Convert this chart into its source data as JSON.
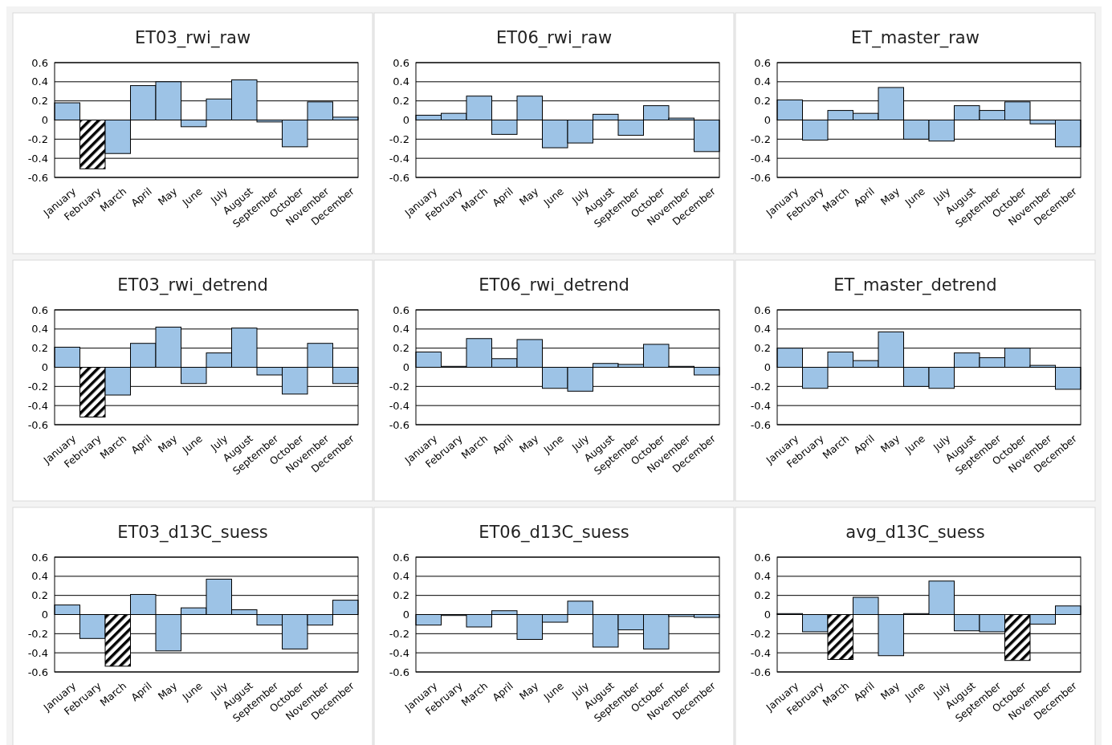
{
  "chart_data": [
    {
      "type": "bar",
      "title": "ET03_rwi_raw",
      "categories": [
        "January",
        "February",
        "March",
        "April",
        "May",
        "June",
        "July",
        "August",
        "September",
        "October",
        "November",
        "December"
      ],
      "values": [
        0.18,
        -0.51,
        -0.35,
        0.36,
        0.4,
        -0.07,
        0.22,
        0.42,
        -0.02,
        -0.28,
        0.19,
        0.03
      ],
      "colors": [
        "#9dc3e6",
        "#000000",
        "#9dc3e6",
        "#9dc3e6",
        "#9dc3e6",
        "#9dc3e6",
        "#9dc3e6",
        "#9dc3e6",
        "#9dc3e6",
        "#9dc3e6",
        "#9dc3e6",
        "#9dc3e6"
      ],
      "ylim": [
        -0.6,
        0.6
      ],
      "yticks": [
        -0.6,
        -0.4,
        -0.2,
        0,
        0.2,
        0.4,
        0.6
      ],
      "grid": "y"
    },
    {
      "type": "bar",
      "title": "ET06_rwi_raw",
      "categories": [
        "January",
        "February",
        "March",
        "April",
        "May",
        "June",
        "July",
        "August",
        "September",
        "October",
        "November",
        "December"
      ],
      "values": [
        0.05,
        0.07,
        0.25,
        -0.15,
        0.25,
        -0.29,
        -0.24,
        0.06,
        -0.16,
        0.15,
        0.02,
        -0.33
      ],
      "colors": [
        "#9dc3e6",
        "#9dc3e6",
        "#9dc3e6",
        "#9dc3e6",
        "#9dc3e6",
        "#9dc3e6",
        "#9dc3e6",
        "#9dc3e6",
        "#9dc3e6",
        "#9dc3e6",
        "#9dc3e6",
        "#9dc3e6"
      ],
      "ylim": [
        -0.6,
        0.6
      ],
      "yticks": [
        -0.6,
        -0.4,
        -0.2,
        0,
        0.2,
        0.4,
        0.6
      ],
      "grid": "y"
    },
    {
      "type": "bar",
      "title": "ET_master_raw",
      "categories": [
        "January",
        "February",
        "March",
        "April",
        "May",
        "June",
        "July",
        "August",
        "September",
        "October",
        "November",
        "December"
      ],
      "values": [
        0.21,
        -0.21,
        0.1,
        0.07,
        0.34,
        -0.2,
        -0.22,
        0.15,
        0.1,
        0.19,
        -0.04,
        -0.28
      ],
      "colors": [
        "#9dc3e6",
        "#9dc3e6",
        "#9dc3e6",
        "#9dc3e6",
        "#9dc3e6",
        "#9dc3e6",
        "#9dc3e6",
        "#9dc3e6",
        "#9dc3e6",
        "#9dc3e6",
        "#9dc3e6",
        "#9dc3e6"
      ],
      "ylim": [
        -0.6,
        0.6
      ],
      "yticks": [
        -0.6,
        -0.4,
        -0.2,
        0,
        0.2,
        0.4,
        0.6
      ],
      "grid": "y"
    },
    {
      "type": "bar",
      "title": "ET03_rwi_detrend",
      "categories": [
        "January",
        "February",
        "March",
        "April",
        "May",
        "June",
        "July",
        "August",
        "September",
        "October",
        "November",
        "December"
      ],
      "values": [
        0.21,
        -0.52,
        -0.29,
        0.25,
        0.42,
        -0.17,
        0.15,
        0.41,
        -0.08,
        -0.28,
        0.25,
        -0.17
      ],
      "colors": [
        "#9dc3e6",
        "#000000",
        "#9dc3e6",
        "#9dc3e6",
        "#9dc3e6",
        "#9dc3e6",
        "#9dc3e6",
        "#9dc3e6",
        "#9dc3e6",
        "#9dc3e6",
        "#9dc3e6",
        "#9dc3e6"
      ],
      "ylim": [
        -0.6,
        0.6
      ],
      "yticks": [
        -0.6,
        -0.4,
        -0.2,
        0,
        0.2,
        0.4,
        0.6
      ],
      "grid": "y"
    },
    {
      "type": "bar",
      "title": "ET06_rwi_detrend",
      "categories": [
        "January",
        "February",
        "March",
        "April",
        "May",
        "June",
        "July",
        "August",
        "September",
        "October",
        "November",
        "December"
      ],
      "values": [
        0.16,
        0.01,
        0.3,
        0.09,
        0.29,
        -0.22,
        -0.25,
        0.04,
        0.03,
        0.24,
        0.01,
        -0.08
      ],
      "colors": [
        "#9dc3e6",
        "#9dc3e6",
        "#9dc3e6",
        "#9dc3e6",
        "#9dc3e6",
        "#9dc3e6",
        "#9dc3e6",
        "#9dc3e6",
        "#9dc3e6",
        "#9dc3e6",
        "#9dc3e6",
        "#9dc3e6"
      ],
      "ylim": [
        -0.6,
        0.6
      ],
      "yticks": [
        -0.6,
        -0.4,
        -0.2,
        0,
        0.2,
        0.4,
        0.6
      ],
      "grid": "y"
    },
    {
      "type": "bar",
      "title": "ET_master_detrend",
      "categories": [
        "January",
        "February",
        "March",
        "April",
        "May",
        "June",
        "July",
        "August",
        "September",
        "October",
        "November",
        "December"
      ],
      "values": [
        0.2,
        -0.22,
        0.16,
        0.07,
        0.37,
        -0.2,
        -0.22,
        0.15,
        0.1,
        0.2,
        0.02,
        -0.23
      ],
      "colors": [
        "#9dc3e6",
        "#9dc3e6",
        "#9dc3e6",
        "#9dc3e6",
        "#9dc3e6",
        "#9dc3e6",
        "#9dc3e6",
        "#9dc3e6",
        "#9dc3e6",
        "#9dc3e6",
        "#9dc3e6",
        "#9dc3e6"
      ],
      "ylim": [
        -0.6,
        0.6
      ],
      "yticks": [
        -0.6,
        -0.4,
        -0.2,
        0,
        0.2,
        0.4,
        0.6
      ],
      "grid": "y"
    },
    {
      "type": "bar",
      "title": "ET03_d13C_suess",
      "categories": [
        "January",
        "February",
        "March",
        "April",
        "May",
        "June",
        "July",
        "August",
        "September",
        "October",
        "November",
        "December"
      ],
      "values": [
        0.1,
        -0.25,
        -0.54,
        0.21,
        -0.38,
        0.07,
        0.37,
        0.05,
        -0.11,
        -0.36,
        -0.11,
        0.15
      ],
      "colors": [
        "#9dc3e6",
        "#9dc3e6",
        "#000000",
        "#9dc3e6",
        "#9dc3e6",
        "#9dc3e6",
        "#9dc3e6",
        "#9dc3e6",
        "#9dc3e6",
        "#9dc3e6",
        "#9dc3e6",
        "#9dc3e6"
      ],
      "ylim": [
        -0.6,
        0.6
      ],
      "yticks": [
        -0.6,
        -0.4,
        -0.2,
        0,
        0.2,
        0.4,
        0.6
      ],
      "grid": "y"
    },
    {
      "type": "bar",
      "title": "ET06_d13C_suess",
      "categories": [
        "January",
        "February",
        "March",
        "April",
        "May",
        "June",
        "July",
        "August",
        "September",
        "October",
        "November",
        "December"
      ],
      "values": [
        -0.11,
        -0.01,
        -0.13,
        0.04,
        -0.26,
        -0.08,
        0.14,
        -0.34,
        -0.16,
        -0.36,
        -0.02,
        -0.03
      ],
      "colors": [
        "#9dc3e6",
        "#9dc3e6",
        "#9dc3e6",
        "#9dc3e6",
        "#9dc3e6",
        "#9dc3e6",
        "#9dc3e6",
        "#9dc3e6",
        "#9dc3e6",
        "#9dc3e6",
        "#9dc3e6",
        "#9dc3e6"
      ],
      "ylim": [
        -0.6,
        0.6
      ],
      "yticks": [
        -0.6,
        -0.4,
        -0.2,
        0,
        0.2,
        0.4,
        0.6
      ],
      "grid": "y"
    },
    {
      "type": "bar",
      "title": "avg_d13C_suess",
      "categories": [
        "January",
        "February",
        "March",
        "April",
        "May",
        "June",
        "July",
        "August",
        "September",
        "October",
        "November",
        "December"
      ],
      "values": [
        0.01,
        -0.18,
        -0.47,
        0.18,
        -0.43,
        0.01,
        0.35,
        -0.17,
        -0.18,
        -0.48,
        -0.1,
        0.09
      ],
      "colors": [
        "#9dc3e6",
        "#9dc3e6",
        "#000000",
        "#9dc3e6",
        "#9dc3e6",
        "#9dc3e6",
        "#9dc3e6",
        "#9dc3e6",
        "#9dc3e6",
        "#000000",
        "#9dc3e6",
        "#9dc3e6"
      ],
      "ylim": [
        -0.6,
        0.6
      ],
      "yticks": [
        -0.6,
        -0.4,
        -0.2,
        0,
        0.2,
        0.4,
        0.6
      ],
      "grid": "y"
    }
  ]
}
